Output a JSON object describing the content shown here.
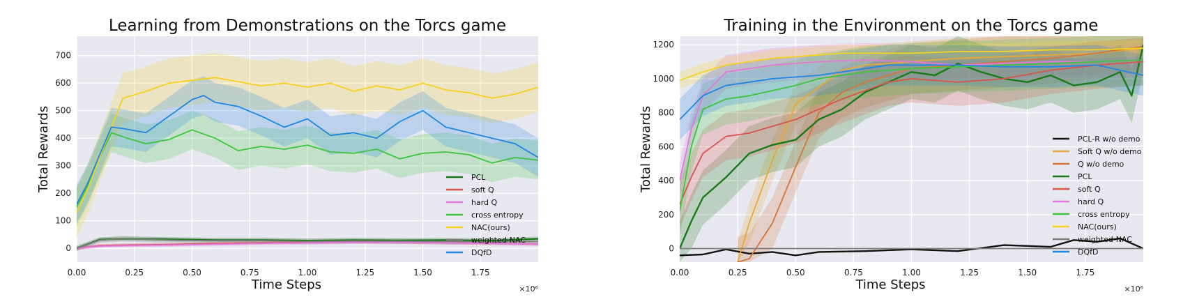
{
  "chart_data": [
    {
      "type": "line",
      "title": "Learning from Demonstrations on the Torcs game",
      "xlabel": "Time Steps",
      "ylabel": "Total Rewards",
      "x_multiplier_label": "×10⁶",
      "xlim": [
        0,
        2.0
      ],
      "ylim": [
        -50,
        770
      ],
      "xticks": [
        0.0,
        0.25,
        0.5,
        0.75,
        1.0,
        1.25,
        1.5,
        1.75
      ],
      "xtick_labels": [
        "0.00",
        "0.25",
        "0.50",
        "0.75",
        "1.00",
        "1.25",
        "1.50",
        "1.75"
      ],
      "yticks": [
        0,
        100,
        200,
        300,
        400,
        500,
        600,
        700
      ],
      "ytick_labels": [
        "0",
        "100",
        "200",
        "300",
        "400",
        "500",
        "600",
        "700"
      ],
      "legend_position": "bottom-right",
      "series": [
        {
          "name": "PCL",
          "color": "#1a7a1a",
          "x": [
            0,
            0.1,
            0.2,
            0.4,
            0.6,
            0.8,
            1.0,
            1.2,
            1.4,
            1.6,
            1.8,
            2.0
          ],
          "y": [
            0,
            32,
            35,
            33,
            30,
            30,
            28,
            30,
            29,
            30,
            28,
            35
          ],
          "band": 8
        },
        {
          "name": "soft Q",
          "color": "#d9544d",
          "x": [
            0,
            0.1,
            0.2,
            0.4,
            0.6,
            0.8,
            1.0,
            1.2,
            1.4,
            1.6,
            1.8,
            2.0
          ],
          "y": [
            0,
            10,
            12,
            14,
            18,
            20,
            22,
            24,
            22,
            20,
            18,
            15
          ],
          "band": 6
        },
        {
          "name": "hard Q",
          "color": "#e377e0",
          "x": [
            0,
            0.1,
            0.2,
            0.4,
            0.6,
            0.8,
            1.0,
            1.2,
            1.4,
            1.6,
            1.8,
            2.0
          ],
          "y": [
            0,
            8,
            10,
            12,
            15,
            18,
            20,
            22,
            22,
            20,
            18,
            15
          ],
          "band": 6
        },
        {
          "name": "cross entropy",
          "color": "#3ec43e",
          "x": [
            0,
            0.05,
            0.1,
            0.15,
            0.2,
            0.3,
            0.4,
            0.5,
            0.6,
            0.7,
            0.8,
            0.9,
            1.0,
            1.1,
            1.2,
            1.3,
            1.4,
            1.5,
            1.6,
            1.7,
            1.8,
            1.9,
            2.0
          ],
          "y": [
            150,
            230,
            330,
            420,
            405,
            380,
            395,
            430,
            400,
            355,
            370,
            360,
            375,
            350,
            345,
            360,
            325,
            345,
            350,
            340,
            310,
            330,
            320
          ],
          "band": 70
        },
        {
          "name": "NAC(ours)",
          "color": "#f5d21e",
          "x": [
            0,
            0.05,
            0.1,
            0.15,
            0.2,
            0.3,
            0.4,
            0.5,
            0.6,
            0.7,
            0.8,
            0.9,
            1.0,
            1.1,
            1.2,
            1.3,
            1.4,
            1.5,
            1.6,
            1.7,
            1.8,
            1.9,
            2.0
          ],
          "y": [
            130,
            220,
            330,
            440,
            545,
            570,
            600,
            610,
            620,
            605,
            590,
            600,
            585,
            600,
            570,
            590,
            575,
            600,
            575,
            565,
            545,
            560,
            585
          ],
          "band": 90
        },
        {
          "name": "weighted-NAC",
          "color": "#7c7c7c",
          "x": [
            0,
            0.1,
            0.2,
            0.4,
            0.6,
            0.8,
            1.0,
            1.2,
            1.4,
            1.6,
            1.8,
            2.0
          ],
          "y": [
            0,
            30,
            35,
            30,
            28,
            28,
            25,
            27,
            26,
            25,
            24,
            25
          ],
          "band": 10
        },
        {
          "name": "DQfD",
          "color": "#2086e0",
          "x": [
            0,
            0.05,
            0.1,
            0.15,
            0.2,
            0.3,
            0.4,
            0.5,
            0.55,
            0.6,
            0.7,
            0.8,
            0.9,
            1.0,
            1.1,
            1.2,
            1.3,
            1.4,
            1.5,
            1.6,
            1.7,
            1.8,
            1.9,
            2.0
          ],
          "y": [
            160,
            240,
            340,
            440,
            435,
            420,
            480,
            540,
            555,
            530,
            515,
            480,
            440,
            470,
            410,
            420,
            400,
            460,
            500,
            440,
            420,
            400,
            380,
            330
          ],
          "band": 70
        }
      ]
    },
    {
      "type": "line",
      "title": "Training in the Environment on the Torcs game",
      "xlabel": "Time Steps",
      "ylabel": "Total Rewards",
      "x_multiplier_label": "×10⁶",
      "xlim": [
        0,
        2.0
      ],
      "ylim": [
        -80,
        1250
      ],
      "xticks": [
        0.0,
        0.25,
        0.5,
        0.75,
        1.0,
        1.25,
        1.5,
        1.75
      ],
      "xtick_labels": [
        "0.00",
        "0.25",
        "0.50",
        "0.75",
        "1.00",
        "1.25",
        "1.50",
        "1.75"
      ],
      "yticks": [
        0,
        200,
        400,
        600,
        800,
        1000,
        1200
      ],
      "ytick_labels": [
        "0",
        "200",
        "400",
        "600",
        "800",
        "1000",
        "1200"
      ],
      "legend_position": "center-right",
      "series": [
        {
          "name": "PCL-R w/o demo",
          "color": "#111111",
          "x": [
            0,
            0.1,
            0.2,
            0.3,
            0.4,
            0.5,
            0.6,
            0.8,
            1.0,
            1.2,
            1.4,
            1.6,
            1.7,
            1.8,
            1.9,
            2.0
          ],
          "y": [
            -40,
            -35,
            -5,
            -30,
            -20,
            -40,
            -20,
            -15,
            -5,
            -15,
            20,
            10,
            50,
            40,
            60,
            0
          ],
          "band": 0
        },
        {
          "name": "Soft Q w/o demo",
          "color": "#e6a83a",
          "x": [
            0.25,
            0.3,
            0.4,
            0.5,
            0.6,
            0.7,
            0.8,
            1.0,
            1.2,
            1.4,
            1.6,
            1.8,
            2.0
          ],
          "y": [
            -80,
            150,
            520,
            850,
            950,
            1050,
            1080,
            1100,
            1120,
            1130,
            1140,
            1150,
            1180
          ],
          "band": 120
        },
        {
          "name": "Q w/o demo",
          "color": "#d4763a",
          "x": [
            0.25,
            0.3,
            0.4,
            0.5,
            0.6,
            0.7,
            0.8,
            1.0,
            1.2,
            1.4,
            1.6,
            1.8,
            2.0
          ],
          "y": [
            -80,
            -60,
            150,
            480,
            800,
            920,
            980,
            1060,
            1080,
            1100,
            1120,
            1150,
            1190
          ],
          "band": 150
        },
        {
          "name": "PCL",
          "color": "#1a7a1a",
          "x": [
            0,
            0.05,
            0.1,
            0.2,
            0.3,
            0.4,
            0.5,
            0.6,
            0.7,
            0.8,
            0.9,
            1.0,
            1.1,
            1.2,
            1.3,
            1.4,
            1.5,
            1.6,
            1.7,
            1.8,
            1.9,
            1.95,
            2.0
          ],
          "y": [
            0,
            160,
            300,
            420,
            560,
            610,
            640,
            760,
            820,
            920,
            980,
            1040,
            1020,
            1090,
            1040,
            1000,
            980,
            1020,
            960,
            980,
            1040,
            900,
            1200
          ],
          "band": 160
        },
        {
          "name": "soft Q",
          "color": "#d9544d",
          "x": [
            0,
            0.05,
            0.1,
            0.2,
            0.3,
            0.4,
            0.5,
            0.6,
            0.7,
            0.8,
            0.9,
            1.0,
            1.2,
            1.4,
            1.6,
            1.8,
            2.0
          ],
          "y": [
            260,
            420,
            560,
            660,
            680,
            720,
            760,
            820,
            880,
            930,
            980,
            1000,
            980,
            1000,
            1050,
            1080,
            1100
          ],
          "band": 140
        },
        {
          "name": "hard Q",
          "color": "#e377e0",
          "x": [
            0,
            0.05,
            0.1,
            0.2,
            0.3,
            0.4,
            0.5,
            0.6,
            0.8,
            1.0,
            1.2,
            1.4,
            1.6,
            1.8,
            2.0
          ],
          "y": [
            400,
            700,
            900,
            1040,
            1060,
            1080,
            1090,
            1100,
            1110,
            1100,
            1080,
            1090,
            1100,
            1100,
            1110
          ],
          "band": 100
        },
        {
          "name": "cross entropy",
          "color": "#3ec43e",
          "x": [
            0,
            0.05,
            0.1,
            0.2,
            0.3,
            0.4,
            0.5,
            0.6,
            0.8,
            1.0,
            1.2,
            1.4,
            1.6,
            1.8,
            2.0
          ],
          "y": [
            220,
            600,
            820,
            880,
            900,
            930,
            960,
            1000,
            1040,
            1060,
            1070,
            1080,
            1090,
            1100,
            1110
          ],
          "band": 150
        },
        {
          "name": "NAC(ours)",
          "color": "#f5d21e",
          "x": [
            0,
            0.1,
            0.2,
            0.3,
            0.4,
            0.5,
            0.6,
            0.7,
            0.8,
            1.0,
            1.2,
            1.4,
            1.6,
            1.8,
            2.0
          ],
          "y": [
            990,
            1040,
            1080,
            1100,
            1120,
            1130,
            1140,
            1150,
            1150,
            1150,
            1160,
            1160,
            1170,
            1170,
            1180
          ],
          "band": 50
        },
        {
          "name": "weighted-NAC",
          "color": "#7c7c7c",
          "x": [
            0,
            0.5,
            1.0,
            1.5,
            2.0
          ],
          "y": [
            0,
            0,
            0,
            0,
            0
          ],
          "band": 0
        },
        {
          "name": "DQfD",
          "color": "#2086e0",
          "x": [
            0,
            0.1,
            0.2,
            0.3,
            0.4,
            0.5,
            0.6,
            0.7,
            0.8,
            0.9,
            1.0,
            1.2,
            1.4,
            1.6,
            1.8,
            2.0
          ],
          "y": [
            760,
            900,
            960,
            980,
            1000,
            1010,
            1020,
            1040,
            1060,
            1080,
            1080,
            1080,
            1070,
            1070,
            1080,
            1020
          ],
          "band": 120
        }
      ]
    }
  ]
}
